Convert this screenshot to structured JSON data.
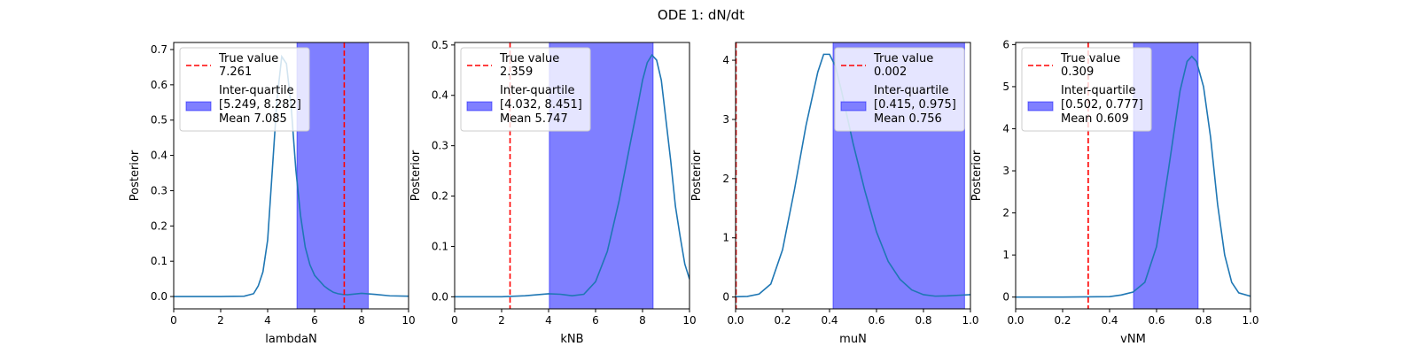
{
  "figure": {
    "title": "ODE 1: dN/dt"
  },
  "legend_labels": {
    "true_value": "True value",
    "inter_quartile": "Inter-quartile",
    "mean_prefix": "Mean"
  },
  "colors": {
    "curve": "#1f77b4",
    "true_line": "#ff0000",
    "band_fill": "#7f7fff",
    "band_edge": "#0000ff"
  },
  "chart_data": [
    {
      "type": "line",
      "xlabel": "lambdaN",
      "ylabel": "Posterior",
      "xlim": [
        0,
        10
      ],
      "ylim": [
        -0.035,
        0.72
      ],
      "xticks": [
        0,
        2,
        4,
        6,
        8,
        10
      ],
      "xtick_labels": [
        "0",
        "2",
        "4",
        "6",
        "8",
        "10"
      ],
      "yticks": [
        0.0,
        0.1,
        0.2,
        0.3,
        0.4,
        0.5,
        0.6,
        0.7
      ],
      "ytick_labels": [
        "0.0",
        "0.1",
        "0.2",
        "0.3",
        "0.4",
        "0.5",
        "0.6",
        "0.7"
      ],
      "true_value": 7.261,
      "true_value_label": "7.261",
      "inter_quartile": [
        5.249,
        8.282
      ],
      "inter_quartile_label": "[5.249, 8.282]",
      "mean_label": "7.085",
      "legend_position": "upper left",
      "series": [
        {
          "x": [
            0,
            1,
            2,
            3,
            3.4,
            3.6,
            3.8,
            4.0,
            4.2,
            4.4,
            4.6,
            4.8,
            5.0,
            5.2,
            5.4,
            5.6,
            5.8,
            6.0,
            6.2,
            6.4,
            6.6,
            6.8,
            7.0,
            7.2,
            7.4,
            8.0,
            8.6,
            9.2,
            10
          ],
          "y": [
            0,
            0,
            0,
            0.001,
            0.008,
            0.03,
            0.07,
            0.16,
            0.36,
            0.56,
            0.68,
            0.66,
            0.54,
            0.36,
            0.23,
            0.14,
            0.09,
            0.06,
            0.045,
            0.03,
            0.02,
            0.012,
            0.008,
            0.006,
            0.005,
            0.009,
            0.006,
            0.002,
            0.001
          ]
        }
      ]
    },
    {
      "type": "line",
      "xlabel": "kNB",
      "ylabel": "Posterior",
      "xlim": [
        0,
        10
      ],
      "ylim": [
        -0.024,
        0.505
      ],
      "xticks": [
        0,
        2,
        4,
        6,
        8,
        10
      ],
      "xtick_labels": [
        "0",
        "2",
        "4",
        "6",
        "8",
        "10"
      ],
      "yticks": [
        0.0,
        0.1,
        0.2,
        0.3,
        0.4,
        0.5
      ],
      "ytick_labels": [
        "0.0",
        "0.1",
        "0.2",
        "0.3",
        "0.4",
        "0.5"
      ],
      "true_value": 2.359,
      "true_value_label": "2.359",
      "inter_quartile": [
        4.032,
        8.451
      ],
      "inter_quartile_label": "[4.032, 8.451]",
      "mean_label": "5.747",
      "legend_position": "upper left",
      "series": [
        {
          "x": [
            0,
            1,
            2,
            3,
            3.5,
            4.0,
            4.5,
            5.0,
            5.5,
            6.0,
            6.5,
            7.0,
            7.5,
            7.8,
            8.0,
            8.2,
            8.4,
            8.6,
            8.8,
            9.0,
            9.2,
            9.4,
            9.6,
            9.8,
            10
          ],
          "y": [
            0,
            0,
            0,
            0.002,
            0.004,
            0.006,
            0.005,
            0.002,
            0.005,
            0.03,
            0.09,
            0.19,
            0.31,
            0.38,
            0.43,
            0.465,
            0.48,
            0.47,
            0.43,
            0.35,
            0.27,
            0.18,
            0.12,
            0.065,
            0.035
          ]
        }
      ]
    },
    {
      "type": "line",
      "xlabel": "muN",
      "ylabel": "Posterior",
      "xlim": [
        0,
        1
      ],
      "ylim": [
        -0.2,
        4.3
      ],
      "xticks": [
        0,
        0.2,
        0.4,
        0.6,
        0.8,
        1.0
      ],
      "xtick_labels": [
        "0.0",
        "0.2",
        "0.4",
        "0.6",
        "0.8",
        "1.0"
      ],
      "yticks": [
        0,
        1,
        2,
        3,
        4
      ],
      "ytick_labels": [
        "0",
        "1",
        "2",
        "3",
        "4"
      ],
      "true_value": 0.002,
      "true_value_label": "0.002",
      "inter_quartile": [
        0.415,
        0.975
      ],
      "inter_quartile_label": "[0.415, 0.975]",
      "mean_label": "0.756",
      "legend_position": "upper right",
      "series": [
        {
          "x": [
            0,
            0.05,
            0.1,
            0.15,
            0.2,
            0.25,
            0.3,
            0.35,
            0.375,
            0.4,
            0.425,
            0.45,
            0.5,
            0.55,
            0.6,
            0.65,
            0.7,
            0.75,
            0.8,
            0.85,
            0.9,
            0.95,
            1.0
          ],
          "y": [
            0.005,
            0.01,
            0.05,
            0.22,
            0.8,
            1.8,
            2.9,
            3.8,
            4.1,
            4.1,
            3.9,
            3.5,
            2.6,
            1.8,
            1.1,
            0.6,
            0.3,
            0.12,
            0.04,
            0.015,
            0.02,
            0.03,
            0.04
          ]
        }
      ]
    },
    {
      "type": "line",
      "xlabel": "vNM",
      "ylabel": "Posterior",
      "xlim": [
        0,
        1
      ],
      "ylim": [
        -0.28,
        6.05
      ],
      "xticks": [
        0,
        0.2,
        0.4,
        0.6,
        0.8,
        1.0
      ],
      "xtick_labels": [
        "0.0",
        "0.2",
        "0.4",
        "0.6",
        "0.8",
        "1.0"
      ],
      "yticks": [
        0,
        1,
        2,
        3,
        4,
        5,
        6
      ],
      "ytick_labels": [
        "0",
        "1",
        "2",
        "3",
        "4",
        "5",
        "6"
      ],
      "true_value": 0.309,
      "true_value_label": "0.309",
      "inter_quartile": [
        0.502,
        0.777
      ],
      "inter_quartile_label": "[0.502, 0.777]",
      "mean_label": "0.609",
      "legend_position": "upper left",
      "series": [
        {
          "x": [
            0,
            0.2,
            0.4,
            0.45,
            0.5,
            0.55,
            0.6,
            0.65,
            0.7,
            0.73,
            0.75,
            0.77,
            0.8,
            0.83,
            0.86,
            0.89,
            0.92,
            0.95,
            1.0
          ],
          "y": [
            0,
            0,
            0.01,
            0.05,
            0.12,
            0.35,
            1.2,
            3.0,
            4.9,
            5.6,
            5.72,
            5.6,
            5.0,
            3.8,
            2.2,
            1.0,
            0.35,
            0.1,
            0.02
          ]
        }
      ]
    }
  ]
}
